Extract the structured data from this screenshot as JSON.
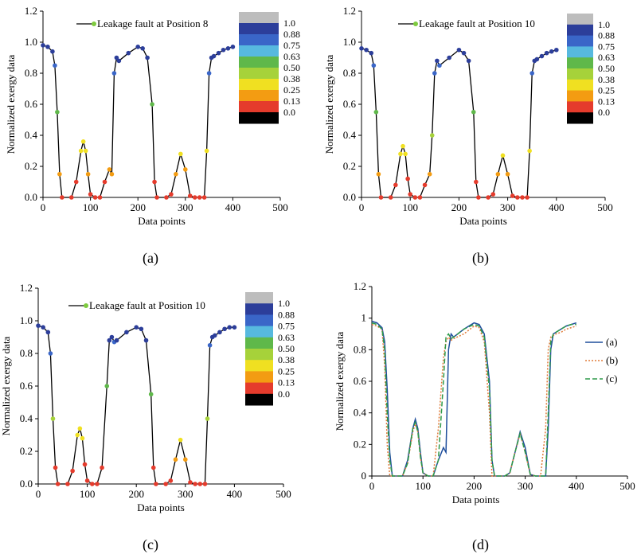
{
  "chart_data": [
    {
      "id": "a",
      "type": "line+scatter",
      "panel_label": "(a)",
      "xlabel": "Data points",
      "ylabel": "Normalized exergy data",
      "xlim": [
        0,
        500
      ],
      "ylim": [
        0,
        1.2
      ],
      "xticks": [
        "0",
        "100",
        "200",
        "300",
        "400",
        "500"
      ],
      "yticks": [
        "0.0",
        "0.2",
        "0.4",
        "0.6",
        "0.8",
        "1.0",
        "1.2"
      ],
      "legend": "Leakage fault at Position 8",
      "colorbar_ticks": [
        "1.0",
        "0.88",
        "0.75",
        "0.63",
        "0.50",
        "0.38",
        "0.25",
        "0.13",
        "0.0"
      ],
      "x": [
        0,
        10,
        20,
        25,
        30,
        35,
        40,
        60,
        70,
        80,
        85,
        90,
        95,
        100,
        110,
        120,
        130,
        140,
        145,
        150,
        155,
        160,
        180,
        200,
        210,
        220,
        230,
        235,
        240,
        260,
        270,
        280,
        290,
        300,
        310,
        320,
        330,
        340,
        345,
        350,
        355,
        360,
        370,
        380,
        390,
        400
      ],
      "y": [
        0.98,
        0.97,
        0.94,
        0.85,
        0.55,
        0.15,
        0,
        0,
        0.1,
        0.3,
        0.36,
        0.3,
        0.15,
        0.02,
        0,
        0,
        0.1,
        0.18,
        0.15,
        0.8,
        0.9,
        0.88,
        0.93,
        0.97,
        0.96,
        0.9,
        0.6,
        0.1,
        0,
        0,
        0.02,
        0.15,
        0.28,
        0.18,
        0.01,
        0,
        0,
        0,
        0.3,
        0.8,
        0.9,
        0.91,
        0.93,
        0.95,
        0.96,
        0.97
      ]
    },
    {
      "id": "b",
      "type": "line+scatter",
      "panel_label": "(b)",
      "xlabel": "Data points",
      "ylabel": "Normalized exergy data",
      "xlim": [
        0,
        500
      ],
      "ylim": [
        0,
        1.2
      ],
      "xticks": [
        "0",
        "100",
        "200",
        "300",
        "400",
        "500"
      ],
      "yticks": [
        "0.0",
        "0.2",
        "0.4",
        "0.6",
        "0.8",
        "1.0",
        "1.2"
      ],
      "legend": "Leakage fault at Position 10",
      "colorbar_ticks": [
        "1.0",
        "0.88",
        "0.75",
        "0.63",
        "0.50",
        "0.38",
        "0.25",
        "0.13",
        "0.0"
      ],
      "x": [
        0,
        10,
        20,
        25,
        30,
        35,
        40,
        60,
        70,
        80,
        85,
        90,
        95,
        100,
        110,
        120,
        130,
        140,
        145,
        150,
        155,
        160,
        180,
        200,
        210,
        220,
        230,
        235,
        240,
        260,
        270,
        280,
        290,
        300,
        310,
        320,
        330,
        340,
        345,
        350,
        355,
        360,
        370,
        380,
        390,
        400
      ],
      "y": [
        0.96,
        0.95,
        0.93,
        0.85,
        0.55,
        0.15,
        0,
        0,
        0.08,
        0.28,
        0.33,
        0.28,
        0.12,
        0.02,
        0,
        0,
        0.08,
        0.15,
        0.4,
        0.8,
        0.88,
        0.85,
        0.9,
        0.95,
        0.93,
        0.88,
        0.55,
        0.1,
        0,
        0,
        0.02,
        0.15,
        0.27,
        0.15,
        0.01,
        0,
        0,
        0,
        0.3,
        0.8,
        0.88,
        0.89,
        0.91,
        0.93,
        0.94,
        0.95
      ]
    },
    {
      "id": "c",
      "type": "line+scatter",
      "panel_label": "(c)",
      "xlabel": "Data points",
      "ylabel": "Normalized exergy data",
      "xlim": [
        0,
        500
      ],
      "ylim": [
        0,
        1.2
      ],
      "xticks": [
        "0",
        "100",
        "200",
        "300",
        "400",
        "500"
      ],
      "yticks": [
        "0.0",
        "0.2",
        "0.4",
        "0.6",
        "0.8",
        "1.0",
        "1.2"
      ],
      "legend": "Leakage fault at Position 10",
      "colorbar_ticks": [
        "1.0",
        "0.88",
        "0.75",
        "0.63",
        "0.50",
        "0.38",
        "0.25",
        "0.13",
        "0.0"
      ],
      "x": [
        0,
        10,
        20,
        25,
        30,
        35,
        40,
        60,
        70,
        80,
        85,
        90,
        95,
        100,
        110,
        120,
        130,
        140,
        145,
        150,
        155,
        160,
        180,
        200,
        210,
        220,
        230,
        235,
        240,
        260,
        270,
        280,
        290,
        300,
        310,
        320,
        330,
        340,
        345,
        350,
        355,
        360,
        370,
        380,
        390,
        400
      ],
      "y": [
        0.97,
        0.96,
        0.93,
        0.8,
        0.4,
        0.1,
        0,
        0,
        0.08,
        0.3,
        0.34,
        0.28,
        0.12,
        0.02,
        0,
        0,
        0.1,
        0.6,
        0.88,
        0.9,
        0.87,
        0.88,
        0.93,
        0.96,
        0.95,
        0.88,
        0.55,
        0.1,
        0,
        0,
        0.02,
        0.15,
        0.27,
        0.15,
        0.01,
        0,
        0,
        0,
        0.4,
        0.85,
        0.9,
        0.91,
        0.93,
        0.95,
        0.96,
        0.96
      ]
    },
    {
      "id": "d",
      "type": "line",
      "panel_label": "(d)",
      "xlabel": "Data points",
      "ylabel": "Normalized exergy data",
      "xlim": [
        0,
        500
      ],
      "ylim": [
        0,
        1.2
      ],
      "xticks": [
        "0",
        "100",
        "200",
        "300",
        "400",
        "500"
      ],
      "yticks": [
        "0",
        "0.2",
        "0.4",
        "0.6",
        "0.8",
        "1",
        "1.2"
      ],
      "legend_position": "right",
      "series": [
        {
          "name": "(a)",
          "color": "#1f4e9c",
          "style": "solid",
          "x": [
            0,
            10,
            20,
            25,
            30,
            35,
            40,
            60,
            70,
            80,
            85,
            90,
            95,
            100,
            110,
            120,
            130,
            140,
            145,
            150,
            155,
            160,
            180,
            200,
            210,
            220,
            230,
            235,
            240,
            260,
            270,
            280,
            290,
            300,
            310,
            320,
            330,
            340,
            345,
            350,
            355,
            360,
            370,
            380,
            390,
            400
          ],
          "y": [
            0.98,
            0.97,
            0.94,
            0.85,
            0.55,
            0.15,
            0,
            0,
            0.1,
            0.3,
            0.36,
            0.3,
            0.15,
            0.02,
            0,
            0,
            0.1,
            0.18,
            0.15,
            0.8,
            0.9,
            0.88,
            0.93,
            0.97,
            0.96,
            0.9,
            0.6,
            0.1,
            0,
            0,
            0.02,
            0.15,
            0.28,
            0.18,
            0.01,
            0,
            0,
            0,
            0.3,
            0.8,
            0.9,
            0.91,
            0.93,
            0.95,
            0.96,
            0.97
          ]
        },
        {
          "name": "(b)",
          "color": "#e07b39",
          "style": "dotted",
          "x": [
            0,
            10,
            20,
            25,
            30,
            35,
            40,
            60,
            70,
            80,
            85,
            90,
            95,
            100,
            110,
            120,
            130,
            140,
            145,
            150,
            155,
            160,
            180,
            200,
            210,
            220,
            230,
            235,
            240,
            260,
            270,
            280,
            290,
            300,
            310,
            320,
            330,
            340,
            345,
            350,
            355,
            360,
            370,
            380,
            390,
            400
          ],
          "y": [
            0.96,
            0.95,
            0.93,
            0.7,
            0.2,
            0,
            0,
            0,
            0.08,
            0.28,
            0.33,
            0.28,
            0.12,
            0.02,
            0,
            0,
            0.3,
            0.75,
            0.85,
            0.88,
            0.86,
            0.87,
            0.9,
            0.95,
            0.94,
            0.85,
            0.4,
            0,
            0,
            0,
            0.02,
            0.15,
            0.27,
            0.15,
            0.01,
            0,
            0,
            0.3,
            0.8,
            0.88,
            0.89,
            0.9,
            0.91,
            0.93,
            0.94,
            0.95
          ]
        },
        {
          "name": "(c)",
          "color": "#2e9a4a",
          "style": "dashed",
          "x": [
            0,
            10,
            20,
            25,
            30,
            35,
            40,
            60,
            70,
            80,
            85,
            90,
            95,
            100,
            110,
            120,
            130,
            140,
            145,
            150,
            155,
            160,
            180,
            200,
            210,
            220,
            230,
            235,
            240,
            260,
            270,
            280,
            290,
            300,
            310,
            320,
            330,
            340,
            345,
            350,
            355,
            360,
            370,
            380,
            390,
            400
          ],
          "y": [
            0.97,
            0.96,
            0.93,
            0.8,
            0.4,
            0.1,
            0,
            0,
            0.08,
            0.3,
            0.34,
            0.28,
            0.12,
            0.02,
            0,
            0,
            0.1,
            0.6,
            0.88,
            0.9,
            0.87,
            0.88,
            0.93,
            0.96,
            0.95,
            0.88,
            0.55,
            0.1,
            0,
            0,
            0.02,
            0.15,
            0.27,
            0.15,
            0.01,
            0,
            0,
            0,
            0.4,
            0.85,
            0.9,
            0.91,
            0.93,
            0.95,
            0.96,
            0.96
          ]
        }
      ]
    }
  ],
  "colorbar_colors": [
    "#bdbdbd",
    "#2c3e9a",
    "#3a66c8",
    "#57b9df",
    "#5fb84a",
    "#a6d23a",
    "#f0e021",
    "#f39c12",
    "#e53b2c",
    "#000000"
  ],
  "line_color": "#000000"
}
